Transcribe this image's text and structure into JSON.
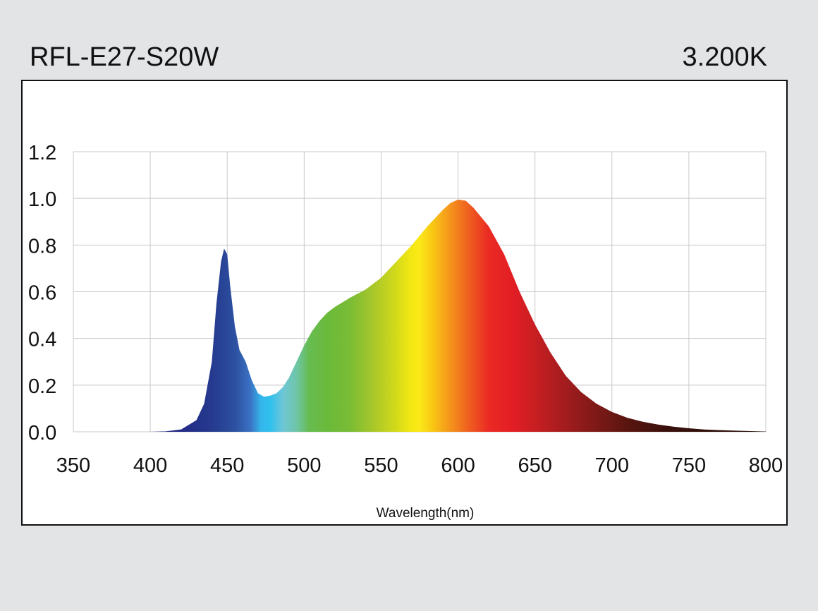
{
  "header": {
    "model": "RFL-E27-S20W",
    "cct": "3.200K"
  },
  "chart_data": {
    "type": "area",
    "title": "",
    "xlabel": "Wavelength(nm)",
    "ylabel": "",
    "xlim": [
      350,
      800
    ],
    "ylim": [
      0,
      1.2
    ],
    "x_ticks": [
      350,
      400,
      450,
      500,
      550,
      600,
      650,
      700,
      750,
      800
    ],
    "x_tick_labels": [
      "350",
      "400",
      "450",
      "500",
      "550",
      "600",
      "650",
      "700",
      "750",
      "800"
    ],
    "y_ticks": [
      0,
      0.2,
      0.4,
      0.6,
      0.8,
      1.0,
      1.2
    ],
    "y_tick_labels": [
      "0.0",
      "0.2",
      "0.4",
      "0.6",
      "0.8",
      "1.0",
      "1.2"
    ],
    "grid": true,
    "fill": "spectral colour gradient by wavelength",
    "series": [
      {
        "x": [
          350,
          400,
          410,
          420,
          430,
          435,
          440,
          443,
          446,
          448,
          450,
          452,
          455,
          458,
          462,
          466,
          470,
          474,
          478,
          482,
          486,
          490,
          495,
          500,
          505,
          510,
          515,
          520,
          525,
          530,
          540,
          550,
          560,
          570,
          580,
          590,
          595,
          600,
          605,
          610,
          620,
          630,
          640,
          650,
          660,
          670,
          680,
          690,
          700,
          710,
          720,
          730,
          740,
          750,
          760,
          770,
          780,
          790,
          800
        ],
        "y": [
          0.0,
          0.0,
          0.002,
          0.01,
          0.05,
          0.12,
          0.3,
          0.55,
          0.73,
          0.785,
          0.76,
          0.62,
          0.45,
          0.35,
          0.3,
          0.22,
          0.165,
          0.15,
          0.155,
          0.165,
          0.19,
          0.23,
          0.3,
          0.37,
          0.43,
          0.475,
          0.51,
          0.535,
          0.555,
          0.575,
          0.61,
          0.66,
          0.73,
          0.8,
          0.88,
          0.95,
          0.98,
          0.995,
          0.99,
          0.96,
          0.88,
          0.76,
          0.6,
          0.46,
          0.34,
          0.24,
          0.17,
          0.12,
          0.085,
          0.06,
          0.043,
          0.031,
          0.022,
          0.015,
          0.01,
          0.007,
          0.005,
          0.003,
          0.001
        ]
      }
    ]
  }
}
